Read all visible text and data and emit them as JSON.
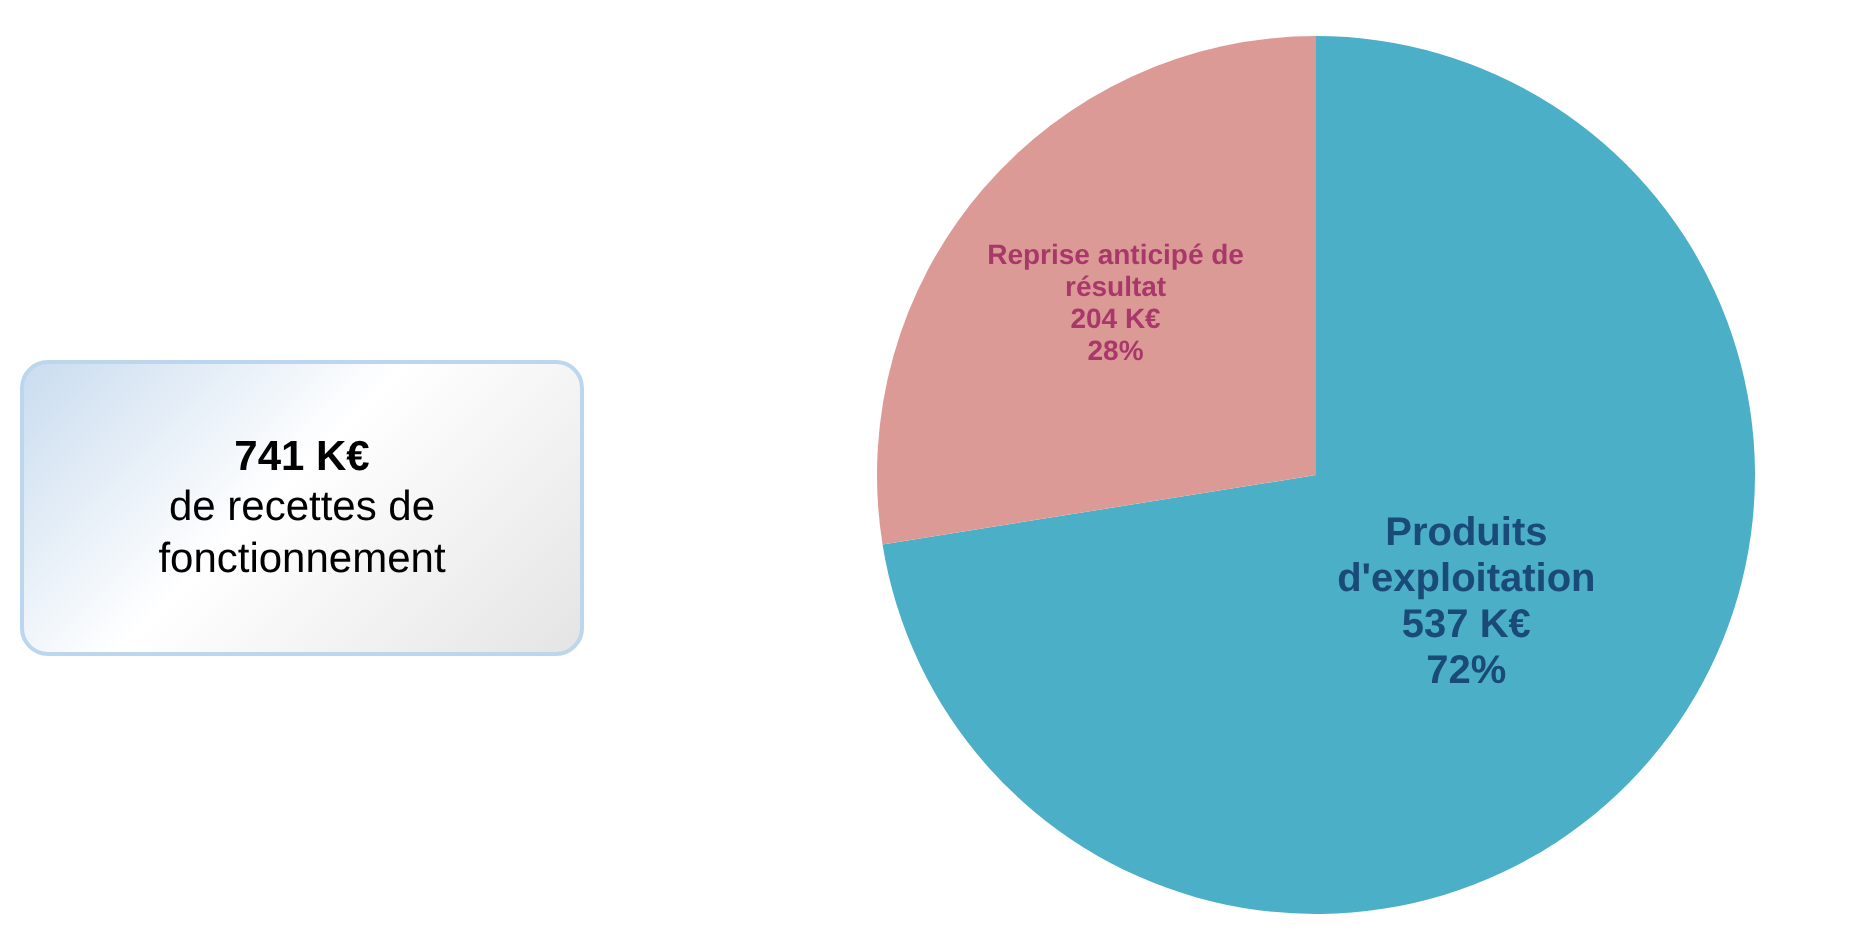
{
  "chart_data": {
    "type": "pie",
    "categories": [
      "Produits d'exploitation",
      "Reprise anticipé de résultat"
    ],
    "values": [
      537,
      204
    ],
    "colors": [
      "#4bafc8",
      "#dc9a96"
    ],
    "value_labels": [
      "537 K€\n72%",
      "204 K€\n28%"
    ],
    "annotations": [
      "741 K€",
      "de recettes de fonctionnement"
    ],
    "legend": false
  }
}
